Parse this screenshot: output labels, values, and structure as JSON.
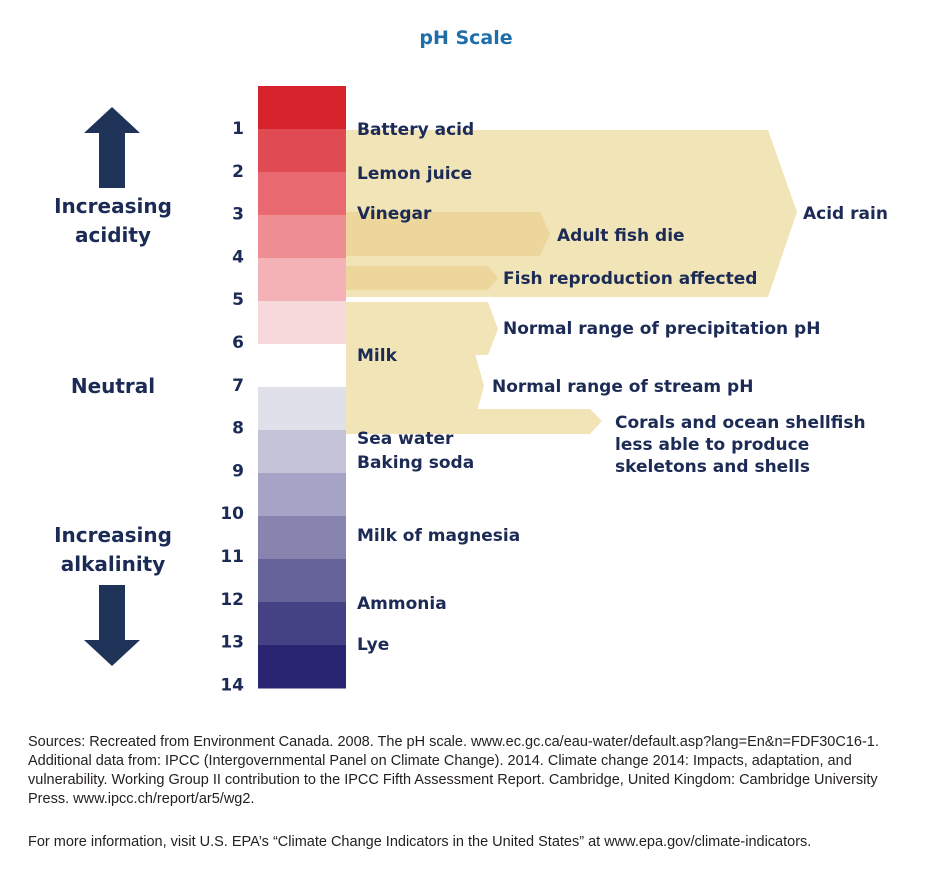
{
  "title": "pH Scale",
  "colors": {
    "title": "#1f6ea9",
    "text": "#1c2b55",
    "arrow": "#1f3358",
    "band_light": "#f1e4b7",
    "band_dark": "#ecd69c"
  },
  "side_labels": {
    "acidity": [
      "Increasing",
      "acidity"
    ],
    "neutral": "Neutral",
    "alkalinity": [
      "Increasing",
      "alkalinity"
    ]
  },
  "scale": {
    "numbers": [
      "1",
      "2",
      "3",
      "4",
      "5",
      "6",
      "7",
      "8",
      "9",
      "10",
      "11",
      "12",
      "13",
      "14"
    ],
    "cell_colors": [
      "#d7232c",
      "#e04a52",
      "#e8696f",
      "#ee8d92",
      "#f4b2b6",
      "#f8d9db",
      "#ffffff",
      "#e0e0ea",
      "#c4c3d8",
      "#a6a4c6",
      "#8784b0",
      "#66639a",
      "#444184",
      "#2a2570"
    ]
  },
  "substances": [
    {
      "ph": 1,
      "label": "Battery acid"
    },
    {
      "ph": 2,
      "label": "Lemon juice"
    },
    {
      "ph": 3,
      "label": "Vinegar"
    },
    {
      "ph": 6.3,
      "label": "Milk"
    },
    {
      "ph": 8.2,
      "label": "Sea water"
    },
    {
      "ph": 8.7,
      "label": "Baking soda"
    },
    {
      "ph": 10.5,
      "label": "Milk of magnesia"
    },
    {
      "ph": 12,
      "label": "Ammonia"
    },
    {
      "ph": 13,
      "label": "Lye"
    }
  ],
  "ranges": [
    {
      "label": "Acid rain",
      "ph_range": [
        1,
        5
      ]
    },
    {
      "label": "Adult fish die",
      "ph_range": [
        3,
        4
      ]
    },
    {
      "label": "Fish reproduction affected",
      "ph_range": [
        4.2,
        4.8
      ]
    },
    {
      "label": "Normal range of precipitation pH",
      "ph_range": [
        5,
        6.3
      ]
    },
    {
      "label": "Normal range of stream pH",
      "ph_range": [
        6,
        8
      ]
    },
    {
      "label_lines": [
        "Corals and ocean shellfish",
        "less able to produce",
        "skeletons and shells"
      ],
      "ph_range": [
        7.7,
        8.3
      ]
    }
  ],
  "footnote": {
    "sources": "Sources: Recreated from Environment Canada. 2008. The pH scale. www.ec.gc.ca/eau-water/default.asp?lang=En&n=FDF30C16-1. Additional data from: IPCC (Intergovernmental Panel on Climate Change). 2014. Climate change 2014: Impacts, adaptation, and vulnerability. Working Group II contribution to the IPCC Fifth Assessment Report. Cambridge, United Kingdom: Cambridge University Press. www.ipcc.ch/report/ar5/wg2.",
    "more_info": "For more information, visit U.S. EPA’s “Climate Change Indicators in the United States” at www.epa.gov/climate-indicators."
  }
}
